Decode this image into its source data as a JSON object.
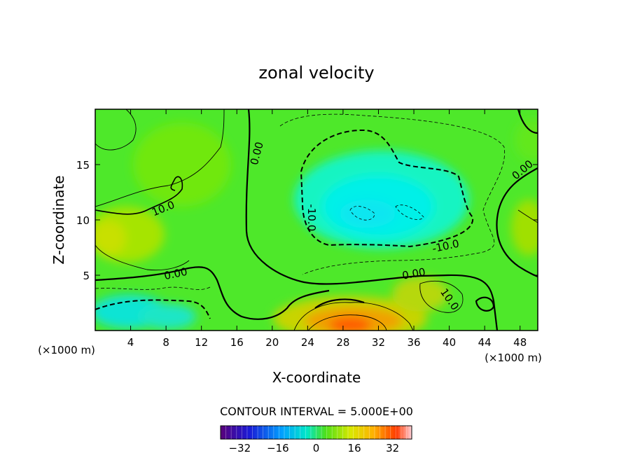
{
  "chart_data": {
    "type": "heatmap",
    "title": "zonal velocity",
    "xlabel": "X-coordinate",
    "ylabel": "Z-coordinate",
    "x_unit_left": "(×1000 m)",
    "x_unit_right": "(×1000 m)",
    "xlim": [
      0,
      50
    ],
    "ylim": [
      0,
      20
    ],
    "x_ticks": [
      4,
      8,
      12,
      16,
      20,
      24,
      28,
      32,
      36,
      40,
      44,
      48
    ],
    "y_ticks": [
      5,
      10,
      15
    ],
    "contour_interval_text": "CONTOUR INTERVAL = 5.000E+00",
    "colorbar": {
      "min": -40,
      "max": 40,
      "ticks": [
        -32,
        -16,
        0,
        16,
        32
      ]
    },
    "contour_labels": [
      {
        "text": "0.00",
        "x": 18.3,
        "y": 16.0,
        "angle": -75
      },
      {
        "text": "10.0",
        "x": 7.7,
        "y": 11.0,
        "angle": -22
      },
      {
        "text": "0.00",
        "x": 9.1,
        "y": 5.1,
        "angle": -12
      },
      {
        "text": "-10.0",
        "x": 24.4,
        "y": 10.2,
        "angle": 90
      },
      {
        "text": "-10.0",
        "x": 39.6,
        "y": 7.6,
        "angle": -12
      },
      {
        "text": "0.00",
        "x": 36.0,
        "y": 5.1,
        "angle": -10
      },
      {
        "text": "10.0",
        "x": 40.0,
        "y": 2.8,
        "angle": 55
      },
      {
        "text": "0.00",
        "x": 48.3,
        "y": 14.5,
        "angle": -40
      }
    ]
  }
}
